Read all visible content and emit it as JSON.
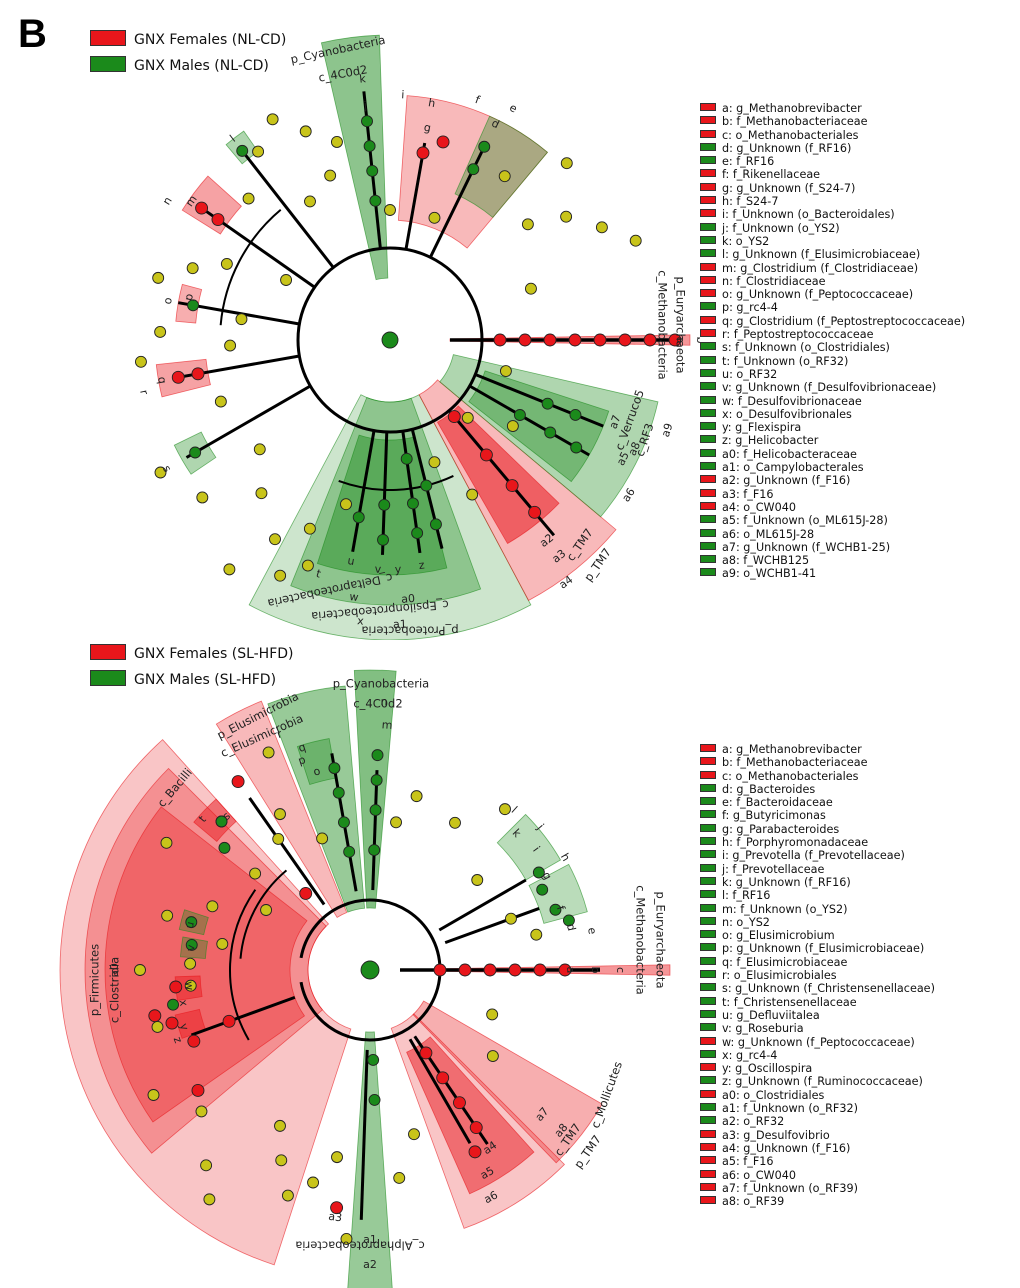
{
  "panel_label": "B",
  "colors": {
    "female": "#e8161b",
    "male": "#1b8a1b",
    "neutral": "#c8c41a",
    "female_shade": "#f4a6a6",
    "male_shade": "#a6d8a0"
  },
  "top": {
    "legend": [
      {
        "label": "GNX Females (NL-CD)",
        "group": "female"
      },
      {
        "label": "GNX Males (NL-CD)",
        "group": "male"
      }
    ],
    "clade_labels": {
      "p_cyano": "p_Cyanobacteria",
      "c_4c0d2": "c_4C0d2",
      "p_eury": "p_Euryarchaeota",
      "c_metha": "c_Methanobacteria",
      "c_verruco": "c_Verruco5",
      "c_rf3": "c_RF3",
      "p_tm7": "p_TM7",
      "c_tm7": "c_TM7",
      "c_deltaproteo": "c_Deltaproteobacteria",
      "c_epsilonproteo": "c_Epsilonproteobacteria",
      "p_proteo": "p_Proteobacteria"
    },
    "markers": [
      "a",
      "b",
      "c",
      "d",
      "e",
      "f",
      "g",
      "h",
      "i",
      "j",
      "k",
      "l",
      "m",
      "n",
      "o",
      "p",
      "q",
      "r",
      "s",
      "t",
      "u",
      "v",
      "w",
      "x",
      "y",
      "z",
      "a0",
      "a1",
      "a2",
      "a3",
      "a4",
      "a5",
      "a6",
      "a7",
      "a8",
      "a9"
    ],
    "key": [
      {
        "text": "a: g_Methanobrevibacter",
        "group": "female"
      },
      {
        "text": "b: f_Methanobacteriaceae",
        "group": "female"
      },
      {
        "text": "c: o_Methanobacteriales",
        "group": "female"
      },
      {
        "text": "d: g_Unknown (f_RF16)",
        "group": "male"
      },
      {
        "text": "e: f_RF16",
        "group": "male"
      },
      {
        "text": "f: f_Rikenellaceae",
        "group": "female"
      },
      {
        "text": "g: g_Unknown (f_S24-7)",
        "group": "female"
      },
      {
        "text": "h: f_S24-7",
        "group": "female"
      },
      {
        "text": "i: f_Unknown (o_Bacteroidales)",
        "group": "female"
      },
      {
        "text": "j: f_Unknown (o_YS2)",
        "group": "male"
      },
      {
        "text": "k: o_YS2",
        "group": "male"
      },
      {
        "text": "l: g_Unknown (f_Elusimicrobiaceae)",
        "group": "male"
      },
      {
        "text": "m: g_Clostridium (f_Clostridiaceae)",
        "group": "female"
      },
      {
        "text": "n: f_Clostridiaceae",
        "group": "female"
      },
      {
        "text": "o: g_Unknown (f_Peptococcaceae)",
        "group": "female"
      },
      {
        "text": "p: g_rc4-4",
        "group": "male"
      },
      {
        "text": "q: g_Clostridium (f_Peptostreptococcaceae)",
        "group": "female"
      },
      {
        "text": "r: f_Peptostreptococcaceae",
        "group": "female"
      },
      {
        "text": "s: f_Unknown (o_Clostridiales)",
        "group": "male"
      },
      {
        "text": "t: f_Unknown (o_RF32)",
        "group": "male"
      },
      {
        "text": "u: o_RF32",
        "group": "male"
      },
      {
        "text": "v: g_Unknown (f_Desulfovibrionaceae)",
        "group": "male"
      },
      {
        "text": "w: f_Desulfovibrionaceae",
        "group": "male"
      },
      {
        "text": "x: o_Desulfovibrionales",
        "group": "male"
      },
      {
        "text": "y: g_Flexispira",
        "group": "male"
      },
      {
        "text": "z: g_Helicobacter",
        "group": "male"
      },
      {
        "text": "a0: f_Helicobacteraceae",
        "group": "male"
      },
      {
        "text": "a1: o_Campylobacterales",
        "group": "male"
      },
      {
        "text": "a2: g_Unknown (f_F16)",
        "group": "female"
      },
      {
        "text": "a3: f_F16",
        "group": "female"
      },
      {
        "text": "a4: o_CW040",
        "group": "female"
      },
      {
        "text": "a5: f_Unknown (o_ML615J-28)",
        "group": "male"
      },
      {
        "text": "a6: o_ML615J-28",
        "group": "male"
      },
      {
        "text": "a7: g_Unknown (f_WCHB1-25)",
        "group": "male"
      },
      {
        "text": "a8: f_WCHB125",
        "group": "male"
      },
      {
        "text": "a9: o_WCHB1-41",
        "group": "male"
      }
    ]
  },
  "bottom": {
    "legend": [
      {
        "label": "GNX Females (SL-HFD)",
        "group": "female"
      },
      {
        "label": "GNX Males (SL-HFD)",
        "group": "male"
      }
    ],
    "clade_labels": {
      "p_cyano": "p_Cyanobacteria",
      "c_4c0d2": "c_4C0d2",
      "p_elusi": "p_Elusimicrobia",
      "c_elusi": "c_Elusimicrobia",
      "c_bacilli": "c_Bacilli",
      "p_firmi": "p_Firmicutes",
      "c_clostridia": "c_Clostridia",
      "p_eury": "p_Euryarchaeota",
      "c_metha": "c_Methanobacteria",
      "c_mollicutes": "c_Mollicutes",
      "p_tm7": "p_TM7",
      "c_tm7": "c_TM7",
      "c_alpha": "c_Alphaproteobacteria"
    },
    "markers": [
      "a",
      "b",
      "c",
      "d",
      "e",
      "f",
      "g",
      "h",
      "i",
      "j",
      "k",
      "l",
      "m",
      "n",
      "o",
      "p",
      "q",
      "r",
      "s",
      "t",
      "u",
      "v",
      "w",
      "x",
      "y",
      "z",
      "a0",
      "a1",
      "a2",
      "a3",
      "a4",
      "a5",
      "a6",
      "a7",
      "a8"
    ],
    "key": [
      {
        "text": "a: g_Methanobrevibacter",
        "group": "female"
      },
      {
        "text": "b: f_Methanobacteriaceae",
        "group": "female"
      },
      {
        "text": "c: o_Methanobacteriales",
        "group": "female"
      },
      {
        "text": "d: g_Bacteroides",
        "group": "male"
      },
      {
        "text": "e: f_Bacteroidaceae",
        "group": "male"
      },
      {
        "text": "f: g_Butyricimonas",
        "group": "male"
      },
      {
        "text": "g: g_Parabacteroides",
        "group": "male"
      },
      {
        "text": "h: f_Porphyromonadaceae",
        "group": "male"
      },
      {
        "text": "i: g_Prevotella (f_Prevotellaceae)",
        "group": "male"
      },
      {
        "text": "j: f_Prevotellaceae",
        "group": "male"
      },
      {
        "text": "k: g_Unknown (f_RF16)",
        "group": "male"
      },
      {
        "text": "l: f_RF16",
        "group": "male"
      },
      {
        "text": "m: f_Unknown (o_YS2)",
        "group": "male"
      },
      {
        "text": "n: o_YS2",
        "group": "male"
      },
      {
        "text": "o: g_Elusimicrobium",
        "group": "male"
      },
      {
        "text": "p: g_Unknown (f_Elusimicrobiaceae)",
        "group": "male"
      },
      {
        "text": "q: f_Elusimicrobiaceae",
        "group": "male"
      },
      {
        "text": "r: o_Elusimicrobiales",
        "group": "male"
      },
      {
        "text": "s: g_Unknown (f_Christensenellaceae)",
        "group": "male"
      },
      {
        "text": "t: f_Christensenellaceae",
        "group": "male"
      },
      {
        "text": "u: g_Defluviitalea",
        "group": "male"
      },
      {
        "text": "v: g_Roseburia",
        "group": "male"
      },
      {
        "text": "w: g_Unknown (f_Peptococcaceae)",
        "group": "female"
      },
      {
        "text": "x: g_rc4-4",
        "group": "male"
      },
      {
        "text": "y: g_Oscillospira",
        "group": "female"
      },
      {
        "text": "z: g_Unknown (f_Ruminococcaceae)",
        "group": "male"
      },
      {
        "text": "a0: o_Clostridiales",
        "group": "female"
      },
      {
        "text": "a1: f_Unknown (o_RF32)",
        "group": "male"
      },
      {
        "text": "a2: o_RF32",
        "group": "male"
      },
      {
        "text": "a3: g_Desulfovibrio",
        "group": "female"
      },
      {
        "text": "a4: g_Unknown (f_F16)",
        "group": "female"
      },
      {
        "text": "a5: f_F16",
        "group": "female"
      },
      {
        "text": "a6: o_CW040",
        "group": "female"
      },
      {
        "text": "a7: f_Unknown (o_RF39)",
        "group": "female"
      },
      {
        "text": "a8: o_RF39",
        "group": "female"
      }
    ]
  }
}
